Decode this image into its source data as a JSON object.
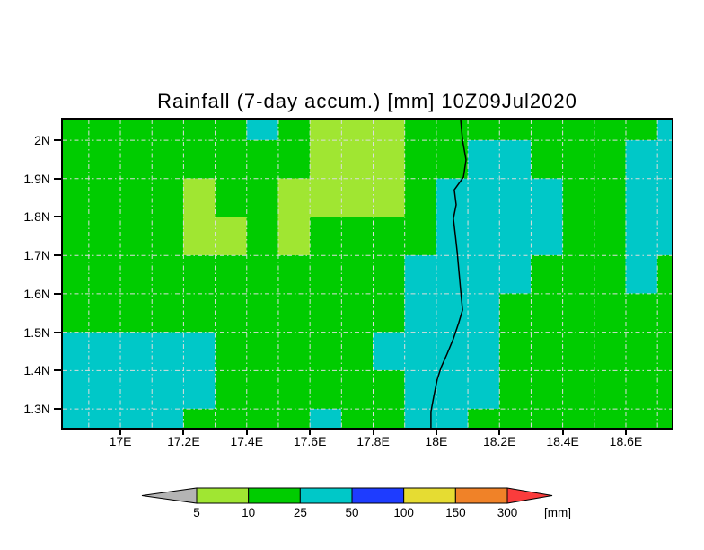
{
  "title": "Rainfall (7-day accum.) [mm] 10Z09Jul2020",
  "colors": {
    "background": "#FFFFFF",
    "border": "#000000",
    "grid_line": "#DCDCDC",
    "coastline": "#000000",
    "green": "#00CC00",
    "light_green": "#A0E632",
    "cyan": "#00C8C8",
    "blue": "#1E3CFF",
    "yellow": "#E6DC32",
    "orange": "#F08228",
    "red": "#FA3C3C",
    "gray": "#B4B4B4"
  },
  "chart_data": {
    "type": "heatmap",
    "title": "Rainfall (7-day accum.) [mm] 10Z09Jul2020",
    "lon_range": [
      16.818,
      18.745
    ],
    "lat_range": [
      1.251,
      2.054
    ],
    "cell_deg": 0.1,
    "grid_origin": {
      "lon_left": 16.8,
      "lat_top": 2.1
    },
    "palette": {
      "G": "#00CC00",
      "L": "#A0E632",
      "C": "#00C8C8"
    },
    "value_key": {
      "G": "10-25 mm",
      "L": "5-10 mm",
      "C": "25-50 mm"
    },
    "rows": [
      "GGGGGGCGLLLGGGGGGGGC",
      "GGGGGGGGLLLGGCCGGGCC",
      "GGGGLGGLLLLGCCCCGGCC",
      "GGGGLLGLGGGGCCCCGGCC",
      "GGGGGGGGGGGCCCCGGGCG",
      "GGGGGGGGGGGCCCGGGGGG",
      "CCCCCGGGGGCCCCGGGGGG",
      "CCCCCGGGGGGCCCGGGGGG",
      "CCCCGGGGCGGCCGGGGGGG"
    ],
    "grid_lons": [
      16.9,
      17.0,
      17.1,
      17.2,
      17.3,
      17.4,
      17.5,
      17.6,
      17.7,
      17.8,
      17.9,
      18.0,
      18.1,
      18.2,
      18.3,
      18.4,
      18.5,
      18.6,
      18.7
    ],
    "grid_lats": [
      1.3,
      1.4,
      1.5,
      1.6,
      1.7,
      1.8,
      1.9,
      2.0
    ],
    "x_ticks": [
      {
        "lon": 17.0,
        "label": "17E"
      },
      {
        "lon": 17.2,
        "label": "17.2E"
      },
      {
        "lon": 17.4,
        "label": "17.4E"
      },
      {
        "lon": 17.6,
        "label": "17.6E"
      },
      {
        "lon": 17.8,
        "label": "17.8E"
      },
      {
        "lon": 18.0,
        "label": "18E"
      },
      {
        "lon": 18.2,
        "label": "18.2E"
      },
      {
        "lon": 18.4,
        "label": "18.4E"
      },
      {
        "lon": 18.6,
        "label": "18.6E"
      }
    ],
    "y_ticks": [
      {
        "lat": 2.0,
        "label": "2N"
      },
      {
        "lat": 1.9,
        "label": "1.9N"
      },
      {
        "lat": 1.8,
        "label": "1.8N"
      },
      {
        "lat": 1.7,
        "label": "1.7N"
      },
      {
        "lat": 1.6,
        "label": "1.6N"
      },
      {
        "lat": 1.5,
        "label": "1.5N"
      },
      {
        "lat": 1.4,
        "label": "1.4N"
      },
      {
        "lat": 1.3,
        "label": "1.3N"
      }
    ],
    "map_line": [
      [
        18.077,
        2.054
      ],
      [
        18.083,
        2.0
      ],
      [
        18.094,
        1.949
      ],
      [
        18.086,
        1.904
      ],
      [
        18.057,
        1.871
      ],
      [
        18.063,
        1.832
      ],
      [
        18.054,
        1.796
      ],
      [
        18.06,
        1.754
      ],
      [
        18.066,
        1.71
      ],
      [
        18.071,
        1.663
      ],
      [
        18.077,
        1.609
      ],
      [
        18.083,
        1.558
      ],
      [
        18.071,
        1.525
      ],
      [
        18.054,
        1.483
      ],
      [
        18.034,
        1.443
      ],
      [
        18.015,
        1.408
      ],
      [
        18.003,
        1.377
      ],
      [
        17.992,
        1.333
      ],
      [
        17.983,
        1.293
      ],
      [
        17.983,
        1.251
      ]
    ],
    "legend": {
      "levels": [
        5,
        10,
        25,
        50,
        100,
        150,
        300
      ],
      "unit": "[mm]",
      "colors": [
        "#B4B4B4",
        "#A0E632",
        "#00CC00",
        "#00C8C8",
        "#1E3CFF",
        "#E6DC32",
        "#F08228",
        "#FA3C3C"
      ],
      "position": "bottom"
    },
    "grid_on": true
  }
}
